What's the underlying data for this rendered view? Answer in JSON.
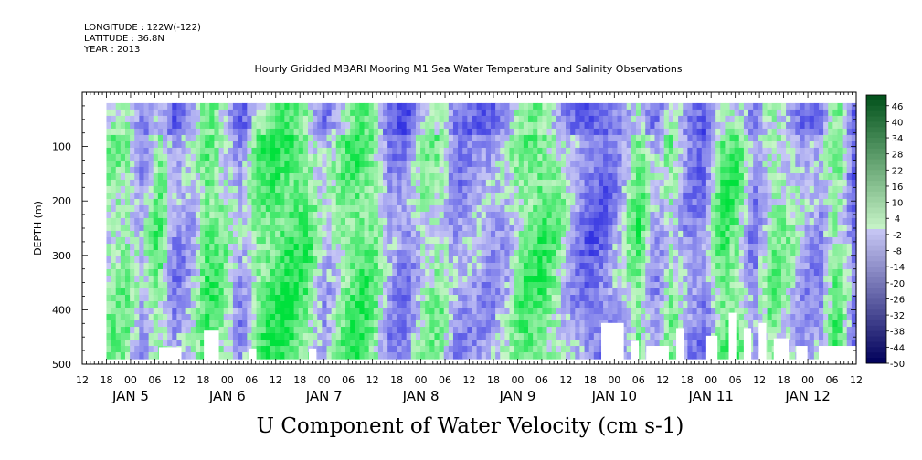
{
  "header": {
    "longitude": "LONGITUDE : 122W(-122)",
    "latitude": "LATITUDE : 36.8N",
    "year": "YEAR : 2013"
  },
  "title": "Hourly Gridded MBARI Mooring M1 Sea Water Temperature and Salinity Observations",
  "footer": "U Component of Water Velocity (cm s-1)",
  "colors": {
    "green_high": "#00e040",
    "green_low": "#c8f5c8",
    "blue_low": "#c8c8f5",
    "blue_high": "#2a2ae8",
    "dark_blue": "#00005a",
    "dark_green": "#004a10"
  },
  "chart_data": {
    "type": "heatmap",
    "ylabel": "DEPTH (m)",
    "ylim": [
      500,
      0
    ],
    "y_ticks": [
      100,
      200,
      300,
      400,
      500
    ],
    "x_hour_labels": [
      "12",
      "18",
      "00",
      "06",
      "12",
      "18",
      "00",
      "06",
      "12",
      "18",
      "00",
      "06",
      "12",
      "18",
      "00",
      "06",
      "12",
      "18",
      "00",
      "06",
      "12",
      "18",
      "00",
      "06",
      "12",
      "18",
      "00",
      "06",
      "12",
      "18",
      "00",
      "06",
      "12"
    ],
    "x_day_labels": [
      {
        "label": "JAN  5",
        "day": 5
      },
      {
        "label": "JAN  6",
        "day": 6
      },
      {
        "label": "JAN  7",
        "day": 7
      },
      {
        "label": "JAN  8",
        "day": 8
      },
      {
        "label": "JAN  9",
        "day": 9
      },
      {
        "label": "JAN 10",
        "day": 10
      },
      {
        "label": "JAN 11",
        "day": 11
      },
      {
        "label": "JAN 12",
        "day": 12
      }
    ],
    "x_range_hours": [
      "2013-01-04T12:00",
      "2013-01-12T12:00"
    ],
    "data_start": "2013-01-04T18:00",
    "data_end": "2013-01-12T12:00",
    "depth_range": [
      20,
      490
    ],
    "colorbar": {
      "min": -50,
      "max": 50,
      "labels": [
        "46",
        "40",
        "34",
        "28",
        "22",
        "16",
        "10",
        "4",
        "-2",
        "-8",
        "-14",
        "-20",
        "-26",
        "-32",
        "-38",
        "-44",
        "-50"
      ]
    },
    "values_description": "U velocity in cm/s; mostly between -20 and +20",
    "column_means": [
      5,
      8,
      -6,
      12,
      -10,
      -4,
      14,
      6,
      -8,
      10,
      15,
      16,
      12,
      -5,
      6,
      14,
      10,
      -8,
      -12,
      4,
      6,
      -10,
      -6,
      -8,
      -4,
      10,
      14,
      8,
      -6,
      -15,
      -14,
      -4,
      12,
      -8,
      6,
      -10,
      -12,
      14,
      10,
      -12,
      8,
      4,
      -6,
      -8,
      12,
      -14
    ]
  }
}
